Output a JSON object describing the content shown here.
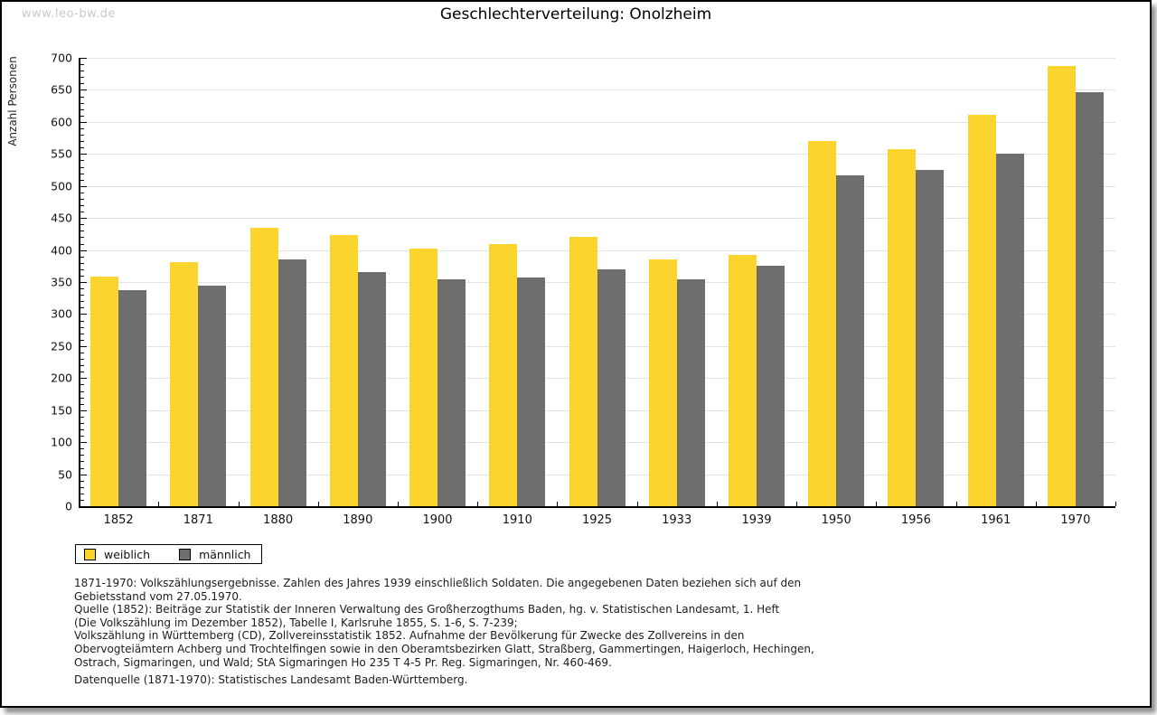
{
  "watermark": "www.leo-bw.de",
  "title": "Geschlechterverteilung: Onolzheim",
  "chart_data": {
    "type": "bar",
    "title": "Geschlechterverteilung: Onolzheim",
    "categories": [
      "1852",
      "1871",
      "1880",
      "1890",
      "1900",
      "1910",
      "1925",
      "1933",
      "1939",
      "1950",
      "1956",
      "1961",
      "1970"
    ],
    "series": [
      {
        "name": "weiblich",
        "color": "#FCD42E",
        "values": [
          358,
          381,
          435,
          423,
          402,
          410,
          421,
          385,
          393,
          570,
          558,
          611,
          687
        ]
      },
      {
        "name": "männlich",
        "color": "#6E6E6E",
        "values": [
          338,
          344,
          386,
          365,
          355,
          357,
          370,
          355,
          375,
          517,
          525,
          550,
          646
        ]
      }
    ],
    "xlabel": "",
    "ylabel": "Anzahl Personen",
    "ylim": [
      0,
      700
    ],
    "ytick_step": 50,
    "yminor_step": 10,
    "grid": "horizontal",
    "gridline_color": "#e2e2e2",
    "legend_position": "bottom-left"
  },
  "legend": {
    "items": [
      {
        "label": "weiblich",
        "color": "#FCD42E"
      },
      {
        "label": "männlich",
        "color": "#6E6E6E"
      }
    ]
  },
  "footnotes": [
    "1871-1970: Volkszählungsergebnisse. Zahlen des Jahres 1939 einschließlich Soldaten. Die angegebenen Daten beziehen sich auf den",
    "Gebietsstand vom 27.05.1970.",
    "Quelle (1852): Beiträge zur Statistik der Inneren Verwaltung des Großherzogthums Baden, hg. v. Statistischen Landesamt, 1. Heft",
    "(Die Volkszählung im Dezember 1852), Tabelle I, Karlsruhe 1855, S. 1-6, S. 7-239;",
    "Volkszählung in Württemberg (CD), Zollvereinsstatistik 1852. Aufnahme der Bevölkerung für Zwecke des Zollvereins in den",
    "Obervogteiämtern Achberg und Trochtelfingen sowie in den Oberamtsbezirken Glatt, Straßberg, Gammertingen, Haigerloch, Hechingen,",
    "Ostrach, Sigmaringen, und Wald; StA Sigmaringen Ho 235 T 4-5 Pr. Reg. Sigmaringen, Nr. 460-469."
  ],
  "datasource": "Datenquelle (1871-1970): Statistisches Landesamt Baden-Württemberg."
}
